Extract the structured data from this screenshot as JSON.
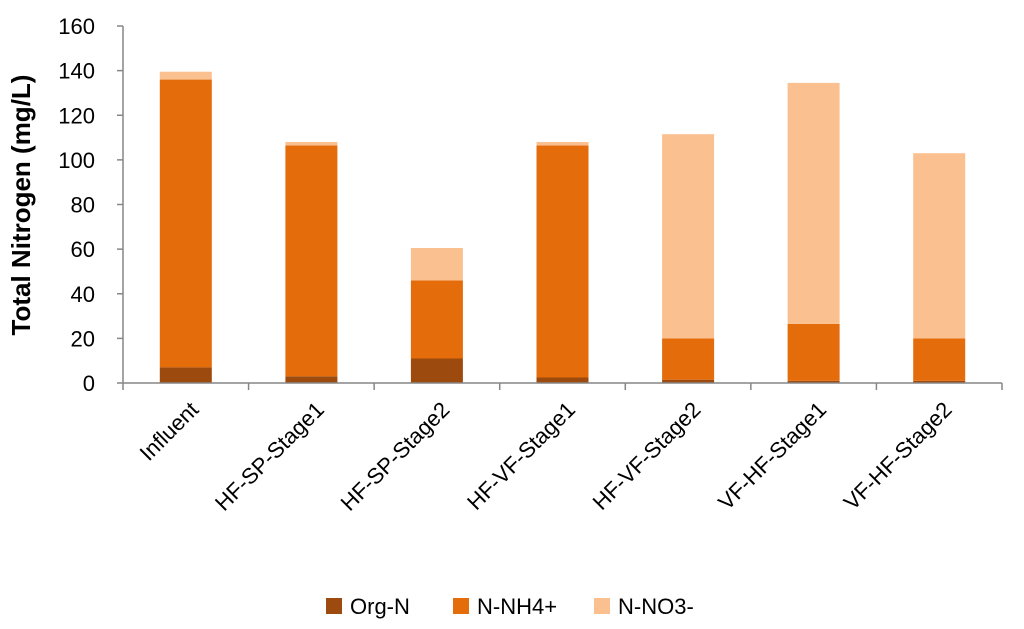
{
  "chart_data": {
    "type": "bar",
    "stacked": true,
    "categories": [
      "Influent",
      "HF-SP-Stage1",
      "HF-SP-Stage2",
      "HF-VF-Stage1",
      "HF-VF-Stage2",
      "VF-HF-Stage1",
      "VF-HF-Stage2"
    ],
    "series": [
      {
        "name": "Org-N",
        "color": "#9C4A0E",
        "values": [
          7,
          3,
          11,
          2.5,
          1.5,
          1,
          1
        ]
      },
      {
        "name": "N-NH4+",
        "color": "#E46C0A",
        "values": [
          129,
          103.5,
          35,
          104,
          18.5,
          25.5,
          19
        ]
      },
      {
        "name": "N-NO3-",
        "color": "#FAC090",
        "values": [
          3.5,
          1.5,
          14.5,
          1.5,
          91.5,
          108,
          83
        ]
      }
    ],
    "title": "",
    "xlabel": "",
    "ylabel": "Total Nitrogen (mg/L)",
    "ylim": [
      0,
      160
    ],
    "yticks": [
      0,
      20,
      40,
      60,
      80,
      100,
      120,
      140,
      160
    ],
    "grid": false,
    "legend_position": "bottom"
  }
}
